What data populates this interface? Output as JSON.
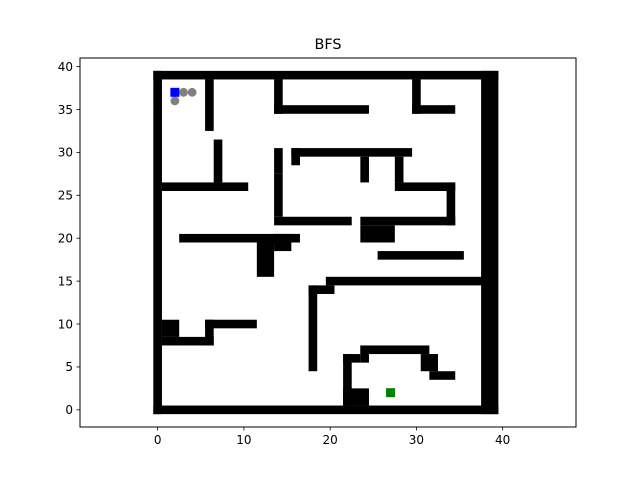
{
  "chart_data": {
    "type": "scatter",
    "title": "BFS",
    "xlabel": "",
    "ylabel": "",
    "xlim": [
      -9,
      48.5
    ],
    "ylim": [
      -2,
      41
    ],
    "xticks": [
      0,
      10,
      20,
      30,
      40
    ],
    "yticks": [
      0,
      5,
      10,
      15,
      20,
      25,
      30,
      35,
      40
    ],
    "grid": false,
    "colors": {
      "wall": "#000000",
      "visited": "#808080",
      "start": "#0000ff",
      "goal": "#008000"
    },
    "walls": {
      "note_units": "grid cells, each cell 1x1 in data units",
      "rects": [
        [
          0,
          39,
          40,
          1
        ],
        [
          0,
          0,
          40,
          1
        ],
        [
          0,
          0,
          1,
          40
        ],
        [
          38,
          0,
          2,
          40
        ],
        [
          6,
          33,
          1,
          6
        ],
        [
          7,
          27,
          1,
          5
        ],
        [
          1,
          26,
          10,
          1
        ],
        [
          14,
          35,
          1,
          4
        ],
        [
          14,
          35,
          11,
          1
        ],
        [
          30,
          35,
          1,
          4
        ],
        [
          30,
          35,
          5,
          1
        ],
        [
          16,
          30,
          14,
          1
        ],
        [
          16,
          29,
          1,
          2
        ],
        [
          14,
          28,
          1,
          3
        ],
        [
          24,
          27,
          1,
          3
        ],
        [
          28,
          27,
          1,
          3
        ],
        [
          28,
          26,
          7,
          1
        ],
        [
          34,
          22,
          1,
          5
        ],
        [
          24,
          22,
          11,
          1
        ],
        [
          14,
          23,
          1,
          5
        ],
        [
          14,
          22,
          9,
          1
        ],
        [
          24,
          20,
          4,
          2
        ],
        [
          26,
          18,
          10,
          1
        ],
        [
          3,
          20,
          14,
          1
        ],
        [
          14,
          19,
          2,
          2
        ],
        [
          12,
          16,
          2,
          4
        ],
        [
          20,
          15,
          19,
          1
        ],
        [
          18,
          14,
          3,
          1
        ],
        [
          18,
          5,
          1,
          10
        ],
        [
          1,
          9,
          2,
          2
        ],
        [
          6,
          10,
          6,
          1
        ],
        [
          6,
          8,
          1,
          3
        ],
        [
          1,
          8,
          6,
          1
        ],
        [
          24,
          7,
          8,
          1
        ],
        [
          24,
          6,
          1,
          2
        ],
        [
          22,
          1,
          1,
          6
        ],
        [
          22,
          6,
          2,
          1
        ],
        [
          22,
          1,
          3,
          2
        ],
        [
          31,
          5,
          2,
          2
        ],
        [
          32,
          4,
          3,
          1
        ]
      ]
    },
    "series": [
      {
        "name": "",
        "role": "visited",
        "points": [
          [
            2,
            36
          ],
          [
            3,
            37
          ],
          [
            4,
            37
          ]
        ]
      },
      {
        "name": "",
        "role": "start",
        "points": [
          [
            2,
            37
          ]
        ]
      },
      {
        "name": "",
        "role": "goal",
        "points": [
          [
            27,
            2
          ]
        ]
      }
    ]
  }
}
